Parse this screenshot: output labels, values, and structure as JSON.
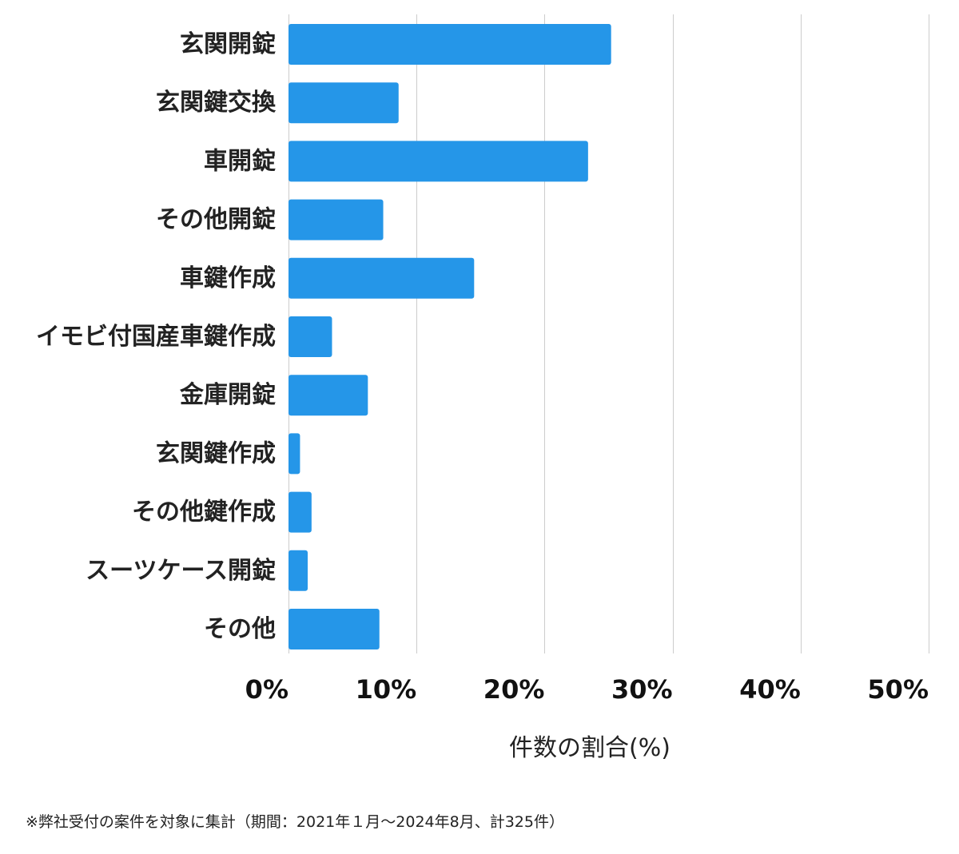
{
  "chart_data": {
    "type": "bar",
    "orientation": "horizontal",
    "categories": [
      "玄関開錠",
      "玄関鍵交換",
      "車開錠",
      "その他開錠",
      "車鍵作成",
      "イモビ付国産車鍵作成",
      "金庫開錠",
      "玄関鍵作成",
      "その他鍵作成",
      "スーツケース開錠",
      "その他"
    ],
    "values": [
      25.2,
      8.6,
      23.4,
      7.4,
      14.5,
      3.4,
      6.2,
      0.9,
      1.8,
      1.5,
      7.1
    ],
    "xlabel": "件数の割合(%)",
    "xlim": [
      0,
      50
    ],
    "xticks": [
      0,
      10,
      20,
      30,
      40,
      50
    ],
    "xtick_labels": [
      "0%",
      "10%",
      "20%",
      "30%",
      "40%",
      "50%"
    ],
    "grid": true,
    "bar_color": "#2596e8"
  },
  "footnote": "※弊社受付の案件を対象に集計（期間：2021年１月〜2024年8月、計325件）"
}
